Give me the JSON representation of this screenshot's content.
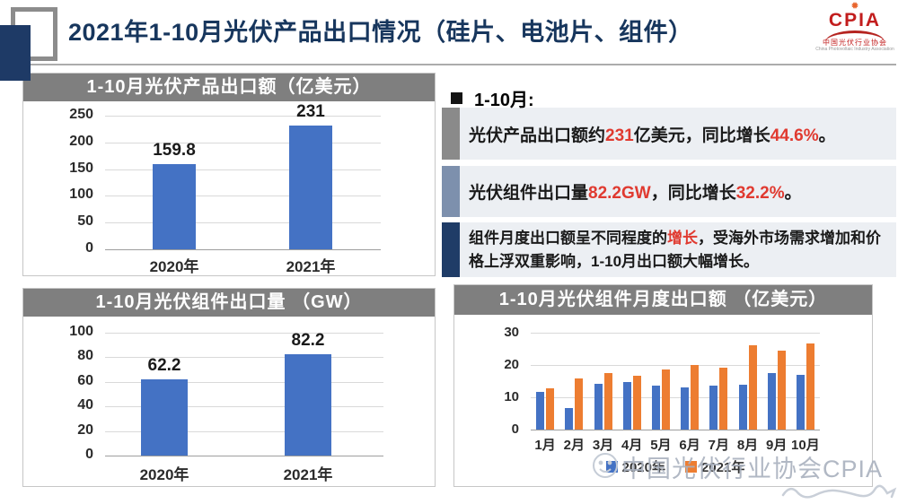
{
  "header": {
    "title": "2021年1-10月光伏产品出口情况（硅片、电池片、组件）",
    "logo": {
      "abbr": "CPIA",
      "org_cn": "中国光伏行业协会",
      "org_en": "China Photovoltaic Industry Association"
    }
  },
  "summary": {
    "heading": "1-10月:",
    "items": [
      {
        "accent": "#8A8A8A",
        "segments": [
          {
            "text": "光伏产品出口额约"
          },
          {
            "text": "231",
            "red": true
          },
          {
            "text": "亿美元，同比增长"
          },
          {
            "text": "44.6%",
            "red": true
          },
          {
            "text": "。"
          }
        ]
      },
      {
        "accent": "#7D90AD",
        "segments": [
          {
            "text": "光伏组件出口量"
          },
          {
            "text": "82.2GW",
            "red": true
          },
          {
            "text": "，同比增长"
          },
          {
            "text": "32.2%",
            "red": true
          },
          {
            "text": "。"
          }
        ]
      },
      {
        "accent": "#1F3C67",
        "segments": [
          {
            "text": "组件月度出口额呈不同程度的"
          },
          {
            "text": "增长",
            "red": true
          },
          {
            "text": "，受海外市场需求增加和价格上浮双重影响，1-10月出口额大幅增长。"
          }
        ]
      }
    ]
  },
  "chart_data": [
    {
      "type": "bar",
      "title": "1-10月光伏产品出口额（亿美元）",
      "categories": [
        "2020年",
        "2021年"
      ],
      "values": [
        159.8,
        231
      ],
      "ylim": [
        0,
        250
      ],
      "yticks": [
        0,
        50,
        100,
        150,
        200,
        250
      ],
      "bar_color": "#4472C4",
      "value_labels": true,
      "grid": true
    },
    {
      "type": "bar",
      "title": "1-10月光伏组件出口量 （GW）",
      "categories": [
        "2020年",
        "2021年"
      ],
      "values": [
        62.2,
        82.2
      ],
      "ylim": [
        0,
        100
      ],
      "yticks": [
        0,
        20,
        40,
        60,
        80,
        100
      ],
      "bar_color": "#4472C4",
      "value_labels": true,
      "grid": true
    },
    {
      "type": "bar",
      "title": "1-10月光伏组件月度出口额 （亿美元）",
      "categories": [
        "1月",
        "2月",
        "3月",
        "4月",
        "5月",
        "6月",
        "7月",
        "8月",
        "9月",
        "10月"
      ],
      "series": [
        {
          "name": "2020年",
          "color": "#4472C4",
          "values": [
            11.7,
            6.7,
            14.2,
            14.6,
            13.7,
            13.0,
            13.7,
            14.0,
            17.4,
            17.0
          ]
        },
        {
          "name": "2021年",
          "color": "#ED7D31",
          "values": [
            12.7,
            15.9,
            17.6,
            16.6,
            18.5,
            20.0,
            19.1,
            26.0,
            24.4,
            26.7
          ]
        }
      ],
      "ylim": [
        0,
        30
      ],
      "yticks": [
        0,
        10,
        20,
        30
      ],
      "legend_position": "bottom",
      "grid": true
    }
  ],
  "watermark": {
    "text": "中国光伏行业协会CPIA"
  },
  "colors": {
    "accent_blue": "#4472C4",
    "accent_orange": "#ED7D31",
    "title_navy": "#17365D",
    "panel_title_bg": "#7F7F7F",
    "band_bg": "#ECEFF3",
    "highlight_red": "#E03A30",
    "gridline": "#D9D9D9",
    "watermark_gray": "#A8B0BE"
  }
}
